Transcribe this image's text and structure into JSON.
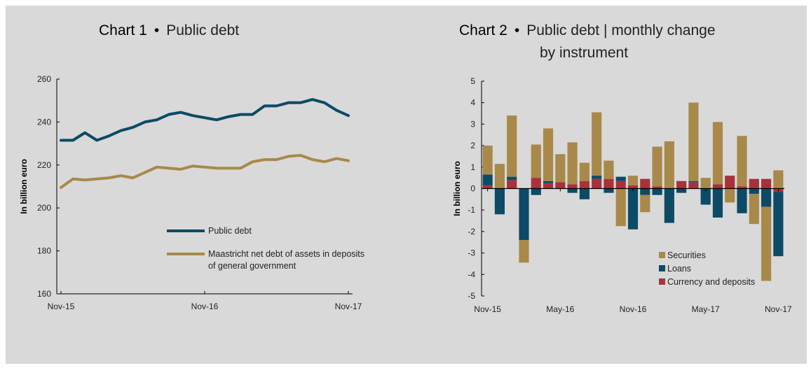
{
  "chart1_heading": {
    "number": "Chart 1",
    "bullet": "•",
    "subtitle": "Public debt"
  },
  "chart2_heading": {
    "number": "Chart 2",
    "bullet": "•",
    "subtitle": "Public debt | monthly change",
    "subtitle_line2": "by instrument"
  },
  "colors": {
    "navy": "#0d4a66",
    "gold": "#a8894a",
    "red": "#a8323a",
    "panel": "#d9d9d9"
  },
  "chart_data": [
    {
      "type": "line",
      "title": "Chart 1 • Public debt",
      "xlabel": "",
      "ylabel": "In billion euro",
      "ylim": [
        160,
        260
      ],
      "yticks": [
        160,
        180,
        200,
        220,
        240,
        260
      ],
      "x": [
        "Nov-15",
        "Dec-15",
        "Jan-16",
        "Feb-16",
        "Mar-16",
        "Apr-16",
        "May-16",
        "Jun-16",
        "Jul-16",
        "Aug-16",
        "Sep-16",
        "Oct-16",
        "Nov-16",
        "Dec-16",
        "Jan-17",
        "Feb-17",
        "Mar-17",
        "Apr-17",
        "May-17",
        "Jun-17",
        "Jul-17",
        "Aug-17",
        "Sep-17",
        "Oct-17",
        "Nov-17"
      ],
      "xtick_labels": [
        "Nov-15",
        "Nov-16",
        "Nov-17"
      ],
      "series": [
        {
          "name": "Public debt",
          "color": "#0d4a66",
          "values": [
            231.5,
            231.5,
            235,
            231.5,
            233.5,
            236,
            237.5,
            240,
            241,
            243.5,
            244.5,
            243,
            242,
            241,
            242.5,
            243.5,
            243.5,
            247.5,
            247.5,
            249,
            249,
            250.5,
            249,
            245.5,
            243
          ]
        },
        {
          "name": "Maastricht net debt of assets in deposits of general government",
          "color": "#a8894a",
          "values": [
            209.5,
            213.5,
            213,
            213.5,
            214,
            215,
            214,
            216.5,
            219,
            218.5,
            218,
            219.5,
            219,
            218.5,
            218.5,
            218.5,
            221.5,
            222.5,
            222.5,
            224,
            224.5,
            222.5,
            221.5,
            223,
            222
          ]
        }
      ],
      "legend": "bottom-right",
      "grid": false
    },
    {
      "type": "bar",
      "stacked": true,
      "title": "Chart 2 • Public debt | monthly change by instrument",
      "xlabel": "",
      "ylabel": "In billion euro",
      "ylim": [
        -5,
        5
      ],
      "yticks": [
        -5,
        -4,
        -3,
        -2,
        -1,
        0,
        1,
        2,
        3,
        4,
        5
      ],
      "categories": [
        "Nov-15",
        "Dec-15",
        "Jan-16",
        "Feb-16",
        "Mar-16",
        "Apr-16",
        "May-16",
        "Jun-16",
        "Jul-16",
        "Aug-16",
        "Sep-16",
        "Oct-16",
        "Nov-16",
        "Dec-16",
        "Jan-17",
        "Feb-17",
        "Mar-17",
        "Apr-17",
        "May-17",
        "Jun-17",
        "Jul-17",
        "Aug-17",
        "Sep-17",
        "Oct-17",
        "Nov-17"
      ],
      "xtick_labels": [
        "Nov-15",
        "May-16",
        "Nov-16",
        "May-17",
        "Nov-17"
      ],
      "series": [
        {
          "name": "Securities",
          "color": "#a8894a",
          "values": [
            1.35,
            1.15,
            2.85,
            -1.05,
            1.55,
            2.45,
            1.3,
            1.95,
            0.85,
            2.95,
            0.85,
            -1.75,
            0.45,
            -0.8,
            1.85,
            2.2,
            0.0,
            3.65,
            0.5,
            2.9,
            -0.65,
            2.35,
            -1.4,
            -3.45,
            0.85
          ]
        },
        {
          "name": "Loans",
          "color": "#0d4a66",
          "values": [
            0.5,
            -1.2,
            0.15,
            -2.4,
            -0.3,
            0.1,
            0.0,
            -0.2,
            -0.5,
            0.15,
            -0.2,
            0.2,
            -1.9,
            -0.3,
            -0.3,
            -1.6,
            -0.2,
            0.05,
            -0.75,
            -1.35,
            0.0,
            -1.15,
            -0.25,
            -0.85,
            -3.0
          ]
        },
        {
          "name": "Currency and deposits",
          "color": "#a8323a",
          "values": [
            0.15,
            0.0,
            0.4,
            0.0,
            0.5,
            0.25,
            0.3,
            0.2,
            0.35,
            0.45,
            0.45,
            0.35,
            0.15,
            0.45,
            0.1,
            0.0,
            0.35,
            0.3,
            0.0,
            0.2,
            0.6,
            0.1,
            0.45,
            0.45,
            -0.15
          ]
        }
      ],
      "legend": "bottom-right",
      "grid": false
    }
  ]
}
